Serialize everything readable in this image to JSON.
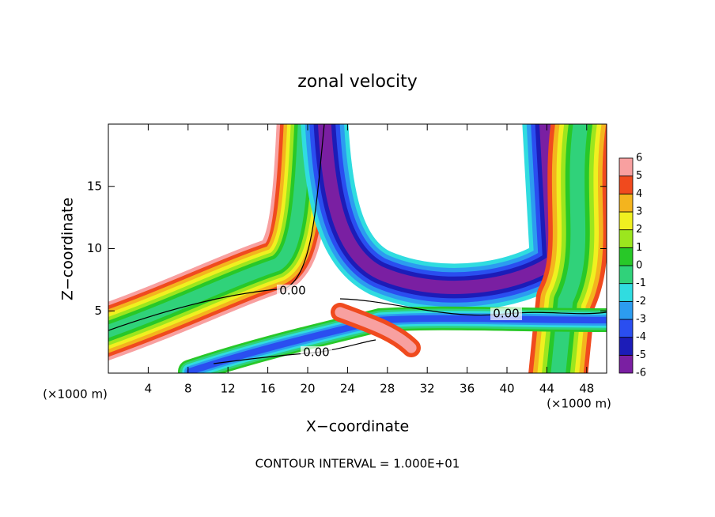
{
  "chart_data": {
    "type": "contour",
    "title": "zonal velocity",
    "xlabel": "X−coordinate",
    "ylabel": "Z−coordinate",
    "x_unit_label": "(×1000 m)",
    "footer": "CONTOUR INTERVAL = 1.000E+01",
    "xlim": [
      0,
      50
    ],
    "xticks": [
      4,
      8,
      12,
      16,
      20,
      24,
      28,
      32,
      36,
      40,
      44,
      48
    ],
    "ylim": [
      0,
      20
    ],
    "yticks": [
      5,
      10,
      15
    ],
    "levels": [
      -6,
      -5,
      -4,
      -3,
      -2,
      -1,
      0,
      1,
      2,
      3,
      4,
      5,
      6
    ],
    "colors": [
      "#7a1fa2",
      "#1c1cb8",
      "#2a4ef0",
      "#2c9cf0",
      "#30dce0",
      "#30d27a",
      "#28c828",
      "#9ce61e",
      "#f0f020",
      "#f4b41e",
      "#f04a1e",
      "#f8a0a0"
    ],
    "contour_labels": [
      "0.00",
      "0.00",
      "0.00"
    ]
  }
}
